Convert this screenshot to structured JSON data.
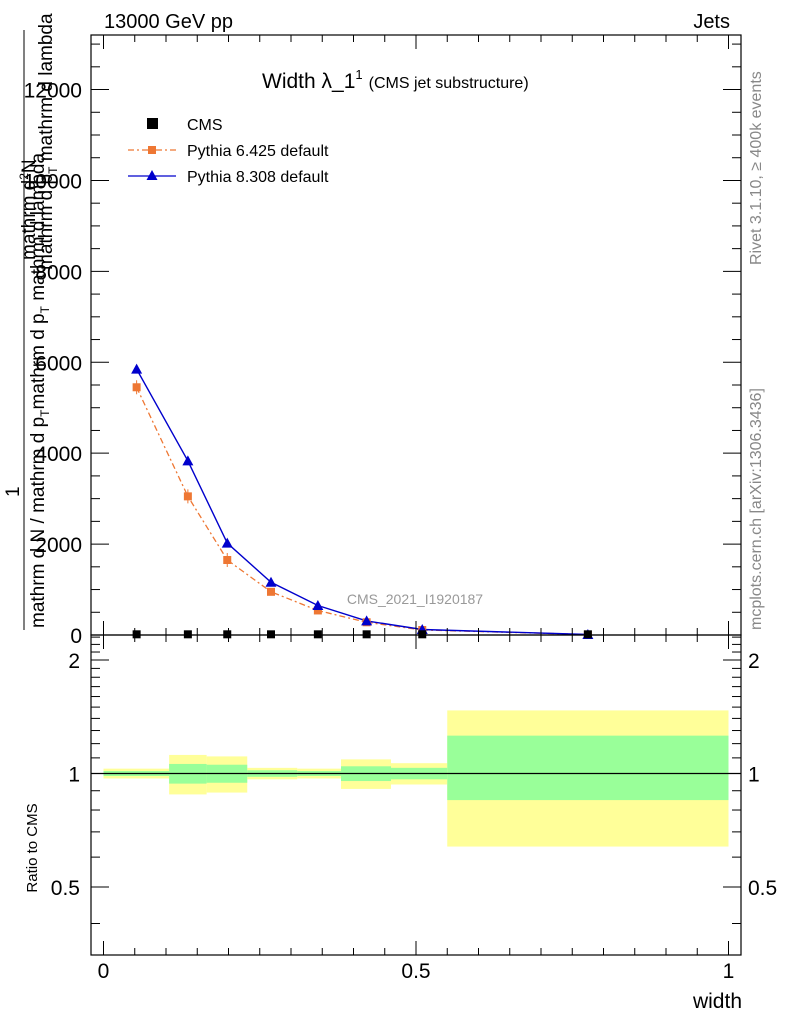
{
  "header": {
    "left": "13000 GeV pp",
    "right": "Jets"
  },
  "side": {
    "rivet": "Rivet 3.1.10, ≥ 400k events",
    "mcplots": "mcplots.cern.ch [arXiv:1306.3436]"
  },
  "chart_data": [
    {
      "type": "line",
      "title_main": "Width λ_1",
      "title_sup": "1",
      "title_sub": "(CMS jet substructure)",
      "ylabel_main": "mathrm d N / mathrm d p",
      "ylabel_sub": "T",
      "ylabel_tail": " mathrm d lambda",
      "ylabel_num": "1",
      "ylabel_den": "mathrm d N / mathrm d p",
      "ylabel_den_sub": "T",
      "ylabel_den_tail": "mathrm d p",
      "ylabel_den_tail_sub": "T",
      "ylabel_den_end": " mathrm d lambda",
      "ylabel_top": "mathrm d",
      "ylabel_top_sup": "2",
      "ylabel_top_tail": "N",
      "watermark": "CMS_2021_I1920187",
      "xlim": [
        -0.02,
        1.02
      ],
      "ylim": [
        0,
        13200
      ],
      "yticks": [
        0,
        2000,
        4000,
        6000,
        8000,
        10000,
        12000
      ],
      "ytick_labels": [
        "0",
        "2000",
        "4000",
        "6000",
        "8000",
        "10000",
        "12000"
      ],
      "legend": [
        "CMS",
        "Pythia 6.425 default",
        "Pythia 8.308 default"
      ],
      "series": [
        {
          "name": "CMS",
          "color": "#000000",
          "x": [
            0.053,
            0.135,
            0.198,
            0.268,
            0.343,
            0.421,
            0.51,
            0.775
          ],
          "y": [
            15,
            15,
            15,
            15,
            15,
            15,
            15,
            15
          ]
        },
        {
          "name": "Pythia 6.425 default",
          "color": "#ee7733",
          "x": [
            0.053,
            0.135,
            0.198,
            0.268,
            0.343,
            0.421,
            0.51,
            0.775
          ],
          "y": [
            5450,
            3050,
            1650,
            950,
            540,
            280,
            110,
            10
          ]
        },
        {
          "name": "Pythia 8.308 default",
          "color": "#0000cc",
          "x": [
            0.053,
            0.135,
            0.198,
            0.268,
            0.343,
            0.421,
            0.51,
            0.775
          ],
          "y": [
            5850,
            3830,
            2020,
            1160,
            650,
            310,
            120,
            12
          ]
        }
      ]
    },
    {
      "type": "area",
      "ylabel": "Ratio to CMS",
      "xlabel": "width",
      "xlim": [
        -0.02,
        1.02
      ],
      "ylim": [
        0.33,
        2.33
      ],
      "xticks": [
        0,
        0.5,
        1
      ],
      "xtick_labels": [
        "0",
        "0.5",
        "1"
      ],
      "yticks": [
        0.5,
        1,
        2
      ],
      "ytick_labels": [
        "0.5",
        "1",
        "2"
      ],
      "bands": [
        {
          "x": [
            0.0,
            0.105
          ],
          "yellow": [
            0.97,
            1.03
          ],
          "green": [
            0.985,
            1.015
          ]
        },
        {
          "x": [
            0.105,
            0.165
          ],
          "yellow": [
            0.88,
            1.12
          ],
          "green": [
            0.94,
            1.06
          ]
        },
        {
          "x": [
            0.165,
            0.23
          ],
          "yellow": [
            0.89,
            1.11
          ],
          "green": [
            0.945,
            1.055
          ]
        },
        {
          "x": [
            0.23,
            0.31
          ],
          "yellow": [
            0.965,
            1.035
          ],
          "green": [
            0.98,
            1.02
          ]
        },
        {
          "x": [
            0.31,
            0.38
          ],
          "yellow": [
            0.97,
            1.03
          ],
          "green": [
            0.985,
            1.015
          ]
        },
        {
          "x": [
            0.38,
            0.46
          ],
          "yellow": [
            0.91,
            1.09
          ],
          "green": [
            0.955,
            1.045
          ]
        },
        {
          "x": [
            0.46,
            0.55
          ],
          "yellow": [
            0.935,
            1.065
          ],
          "green": [
            0.965,
            1.035
          ]
        },
        {
          "x": [
            0.55,
            1.0
          ],
          "yellow": [
            0.64,
            1.47
          ],
          "green": [
            0.85,
            1.26
          ]
        }
      ],
      "colors": {
        "yellow": "#ffff99",
        "green": "#99ff99"
      }
    }
  ]
}
